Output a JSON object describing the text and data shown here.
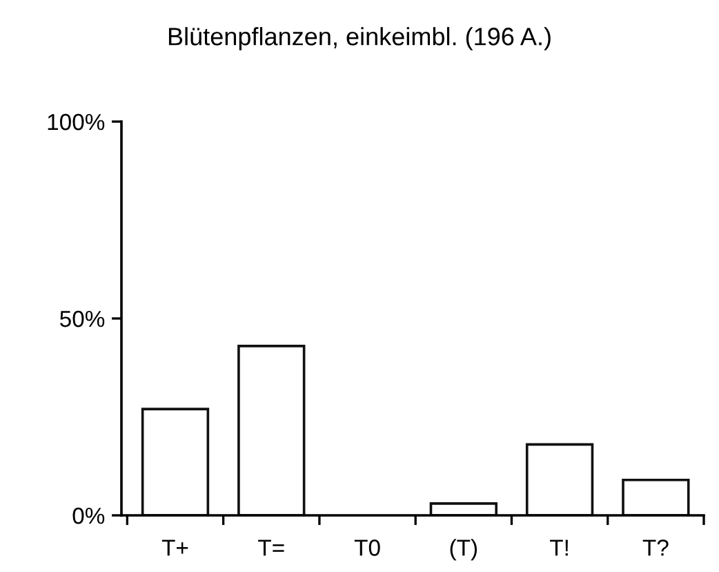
{
  "chart_data": {
    "type": "bar",
    "title": "Blütenpflanzen, einkeimbl. (196 A.)",
    "categories": [
      "T+",
      "T=",
      "T0",
      "(T)",
      "T!",
      "T?"
    ],
    "values": [
      27,
      43,
      0,
      3,
      18,
      9
    ],
    "color": "#ffffff",
    "ylim": [
      0,
      100
    ],
    "yticks": [
      {
        "value": 0,
        "label": "0%"
      },
      {
        "value": 50,
        "label": "50%"
      },
      {
        "value": 100,
        "label": "100%"
      }
    ],
    "grid": false
  }
}
